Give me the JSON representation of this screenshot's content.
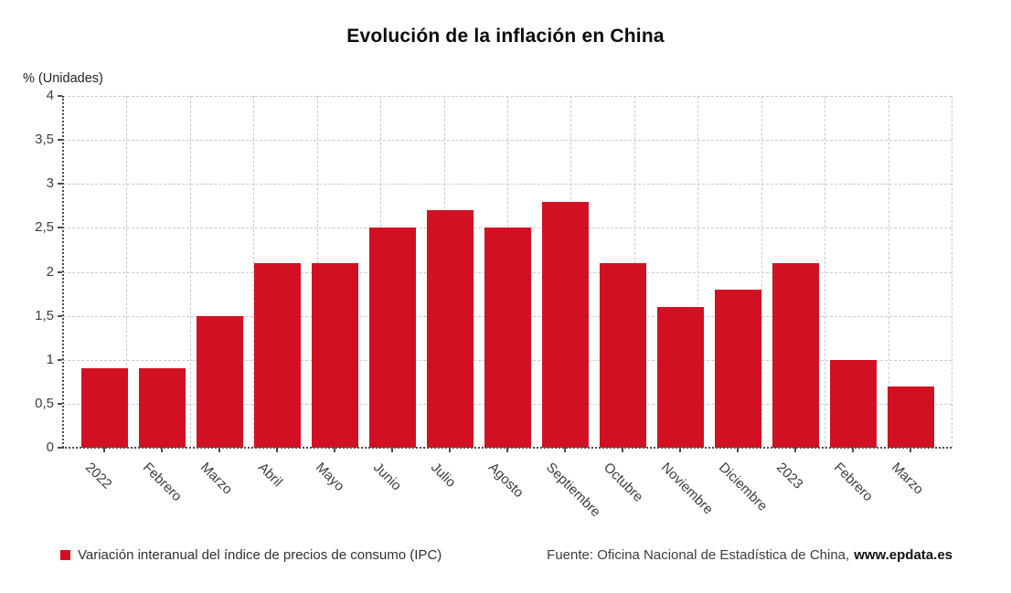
{
  "chart_data": {
    "type": "bar",
    "title": "Evolución de la inflación en China",
    "ylabel": "% (Unidades)",
    "xlabel": "",
    "categories": [
      "2022",
      "Febrero",
      "Marzo",
      "Abril",
      "Mayo",
      "Junio",
      "Julio",
      "Agosto",
      "Septiembre",
      "Octubre",
      "Noviembre",
      "Diciembre",
      "2023",
      "Febrero",
      "Marzo"
    ],
    "values": [
      0.9,
      0.9,
      1.5,
      2.1,
      2.1,
      2.5,
      2.7,
      2.5,
      2.8,
      2.1,
      1.6,
      1.8,
      2.1,
      1.0,
      0.7
    ],
    "series_name": "Variación interanual del índice de precios de consumo (IPC)",
    "ylim": [
      0,
      4
    ],
    "ytick_values": [
      0,
      0.5,
      1,
      1.5,
      2,
      2.5,
      3,
      3.5,
      4
    ],
    "ytick_labels": [
      "0",
      "0,5",
      "1",
      "1,5",
      "2",
      "2,5",
      "3",
      "3,5",
      "4"
    ],
    "grid": true,
    "legend_position": "bottom-left",
    "bar_color": "#d11123"
  },
  "legend": {
    "marker_color": "#d11123",
    "label": "Variación interanual del índice de precios de consumo (IPC)"
  },
  "footer": {
    "source_prefix": "Fuente: Oficina Nacional de Estadística de China,",
    "source_site": "www.epdata.es"
  }
}
